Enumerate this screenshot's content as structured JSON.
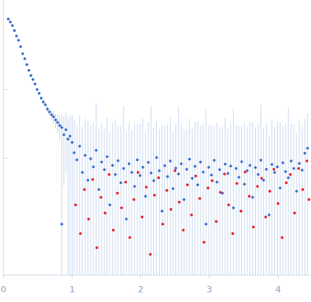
{
  "chart_data": {
    "type": "scatter",
    "log": "y",
    "tick_labels": "x",
    "marker": "circle",
    "xlim": [
      0,
      4.47
    ],
    "ylim": [
      0.0002,
      2
    ],
    "xticks": [
      0,
      1,
      2,
      3,
      4
    ],
    "yticks": [
      0.01,
      0.1
    ],
    "series": [
      {
        "color": "#3b6fce",
        "x": [
          0.07,
          0.1,
          0.13,
          0.16,
          0.19,
          0.22,
          0.25,
          0.28,
          0.31,
          0.34,
          0.37,
          0.4,
          0.43,
          0.46,
          0.49,
          0.52,
          0.55,
          0.58,
          0.61,
          0.64,
          0.67,
          0.7,
          0.73,
          0.76,
          0.79,
          0.82,
          0.85,
          0.85,
          0.88,
          0.91,
          0.94,
          0.97,
          1.0,
          1.03,
          1.07,
          1.11,
          1.15,
          1.19,
          1.23,
          1.27,
          1.31,
          1.35,
          1.39,
          1.43,
          1.47,
          1.51,
          1.55,
          1.59,
          1.63,
          1.67,
          1.71,
          1.75,
          1.79,
          1.83,
          1.87,
          1.91,
          1.95,
          1.99,
          2.03,
          2.07,
          2.11,
          2.15,
          2.19,
          2.23,
          2.27,
          2.31,
          2.35,
          2.39,
          2.43,
          2.47,
          2.51,
          2.55,
          2.59,
          2.63,
          2.67,
          2.71,
          2.75,
          2.79,
          2.83,
          2.87,
          2.91,
          2.95,
          2.99,
          3.03,
          3.07,
          3.11,
          3.15,
          3.19,
          3.23,
          3.27,
          3.31,
          3.35,
          3.39,
          3.43,
          3.47,
          3.51,
          3.55,
          3.59,
          3.63,
          3.67,
          3.71,
          3.75,
          3.79,
          3.83,
          3.87,
          3.91,
          3.95,
          3.99,
          4.03,
          4.07,
          4.11,
          4.15,
          4.19,
          4.23,
          4.27,
          4.31,
          4.35,
          4.39,
          4.43
        ],
        "values": [
          1.06,
          0.96,
          0.85,
          0.72,
          0.6,
          0.52,
          0.42,
          0.33,
          0.28,
          0.23,
          0.19,
          0.16,
          0.14,
          0.12,
          0.1,
          0.088,
          0.075,
          0.066,
          0.06,
          0.052,
          0.047,
          0.043,
          0.04,
          0.036,
          0.033,
          0.03,
          0.028,
          0.0011,
          0.022,
          0.026,
          0.019,
          0.021,
          0.017,
          0.012,
          0.0095,
          0.015,
          0.0062,
          0.011,
          0.0048,
          0.0098,
          0.0075,
          0.013,
          0.0035,
          0.0088,
          0.0068,
          0.0105,
          0.0021,
          0.0079,
          0.0058,
          0.0092,
          0.0044,
          0.0071,
          0.0013,
          0.0083,
          0.0062,
          0.0039,
          0.0095,
          0.0056,
          0.0074,
          0.0028,
          0.0087,
          0.0061,
          0.0047,
          0.0102,
          0.0066,
          0.0017,
          0.0078,
          0.0054,
          0.0091,
          0.0036,
          0.0072,
          0.0059,
          0.0083,
          0.0025,
          0.0069,
          0.0097,
          0.0051,
          0.0076,
          0.0041,
          0.0088,
          0.0063,
          0.0011,
          0.0074,
          0.0057,
          0.0093,
          0.0045,
          0.0068,
          0.0031,
          0.0082,
          0.006,
          0.0077,
          0.0019,
          0.0071,
          0.0053,
          0.0089,
          0.0042,
          0.0066,
          0.0079,
          0.0027,
          0.0073,
          0.0058,
          0.0094,
          0.0048,
          0.0069,
          0.0015,
          0.0081,
          0.0062,
          0.0075,
          0.0037,
          0.0086,
          0.0064,
          0.0052,
          0.0091,
          0.0071,
          0.0033,
          0.0084,
          0.0067,
          0.0118,
          0.014
        ],
        "errors": [
          0.02,
          0.02,
          0.02,
          0.015,
          0.015,
          0.012,
          0.01,
          0.01,
          0.008,
          0.007,
          0.006,
          0.005,
          0.005,
          0.004,
          0.004,
          0.004,
          0.004,
          0.004,
          0.005,
          0.006,
          0.006,
          0.007,
          0.008,
          0.009,
          0.01,
          0.012,
          0.015,
          0.025,
          0.018,
          0.02,
          0.02,
          0.022,
          0.025,
          0.024,
          0.02,
          0.028,
          0.022,
          0.026,
          0.03,
          0.021,
          0.025,
          0.05,
          0.023,
          0.024,
          0.02,
          0.028,
          0.022,
          0.026,
          0.03,
          0.021,
          0.025,
          0.05,
          0.023,
          0.024,
          0.02,
          0.028,
          0.022,
          0.026,
          0.03,
          0.021,
          0.025,
          0.05,
          0.023,
          0.024,
          0.02,
          0.028,
          0.022,
          0.026,
          0.03,
          0.021,
          0.025,
          0.05,
          0.023,
          0.024,
          0.02,
          0.028,
          0.022,
          0.026,
          0.03,
          0.021,
          0.025,
          0.05,
          0.023,
          0.024,
          0.02,
          0.028,
          0.022,
          0.026,
          0.03,
          0.021,
          0.025,
          0.05,
          0.023,
          0.024,
          0.02,
          0.028,
          0.022,
          0.026,
          0.03,
          0.021,
          0.025,
          0.05,
          0.023,
          0.024,
          0.02,
          0.028,
          0.022,
          0.026,
          0.03,
          0.021,
          0.025,
          0.05,
          0.023,
          0.024,
          0.02,
          0.028,
          0.022,
          0.026,
          0.03
        ]
      },
      {
        "color": "#e8202a",
        "x": [
          1.05,
          1.12,
          1.18,
          1.24,
          1.3,
          1.36,
          1.42,
          1.48,
          1.54,
          1.6,
          1.66,
          1.72,
          1.78,
          1.84,
          1.9,
          1.96,
          2.02,
          2.08,
          2.14,
          2.2,
          2.26,
          2.32,
          2.38,
          2.44,
          2.5,
          2.56,
          2.62,
          2.68,
          2.74,
          2.8,
          2.86,
          2.92,
          2.98,
          3.04,
          3.1,
          3.16,
          3.22,
          3.28,
          3.34,
          3.4,
          3.46,
          3.52,
          3.58,
          3.64,
          3.7,
          3.76,
          3.82,
          3.88,
          3.94,
          4.0,
          4.06,
          4.12,
          4.18,
          4.24,
          4.3,
          4.36,
          4.42,
          4.45
        ],
        "values": [
          0.0021,
          0.0008,
          0.0035,
          0.0013,
          0.0049,
          0.0005,
          0.0027,
          0.0016,
          0.0058,
          0.0009,
          0.0031,
          0.0019,
          0.0045,
          0.0007,
          0.0025,
          0.0062,
          0.0014,
          0.0038,
          0.0004,
          0.0029,
          0.0052,
          0.0011,
          0.0034,
          0.0018,
          0.0066,
          0.0023,
          0.0009,
          0.0041,
          0.0015,
          0.0055,
          0.0026,
          0.0006,
          0.0037,
          0.0047,
          0.0012,
          0.0032,
          0.0059,
          0.0021,
          0.0008,
          0.0043,
          0.0017,
          0.0063,
          0.0028,
          0.001,
          0.0039,
          0.0051,
          0.0014,
          0.0033,
          0.0069,
          0.0022,
          0.0007,
          0.0044,
          0.0058,
          0.0016,
          0.0071,
          0.0035,
          0.0091,
          0.0025
        ]
      }
    ]
  }
}
